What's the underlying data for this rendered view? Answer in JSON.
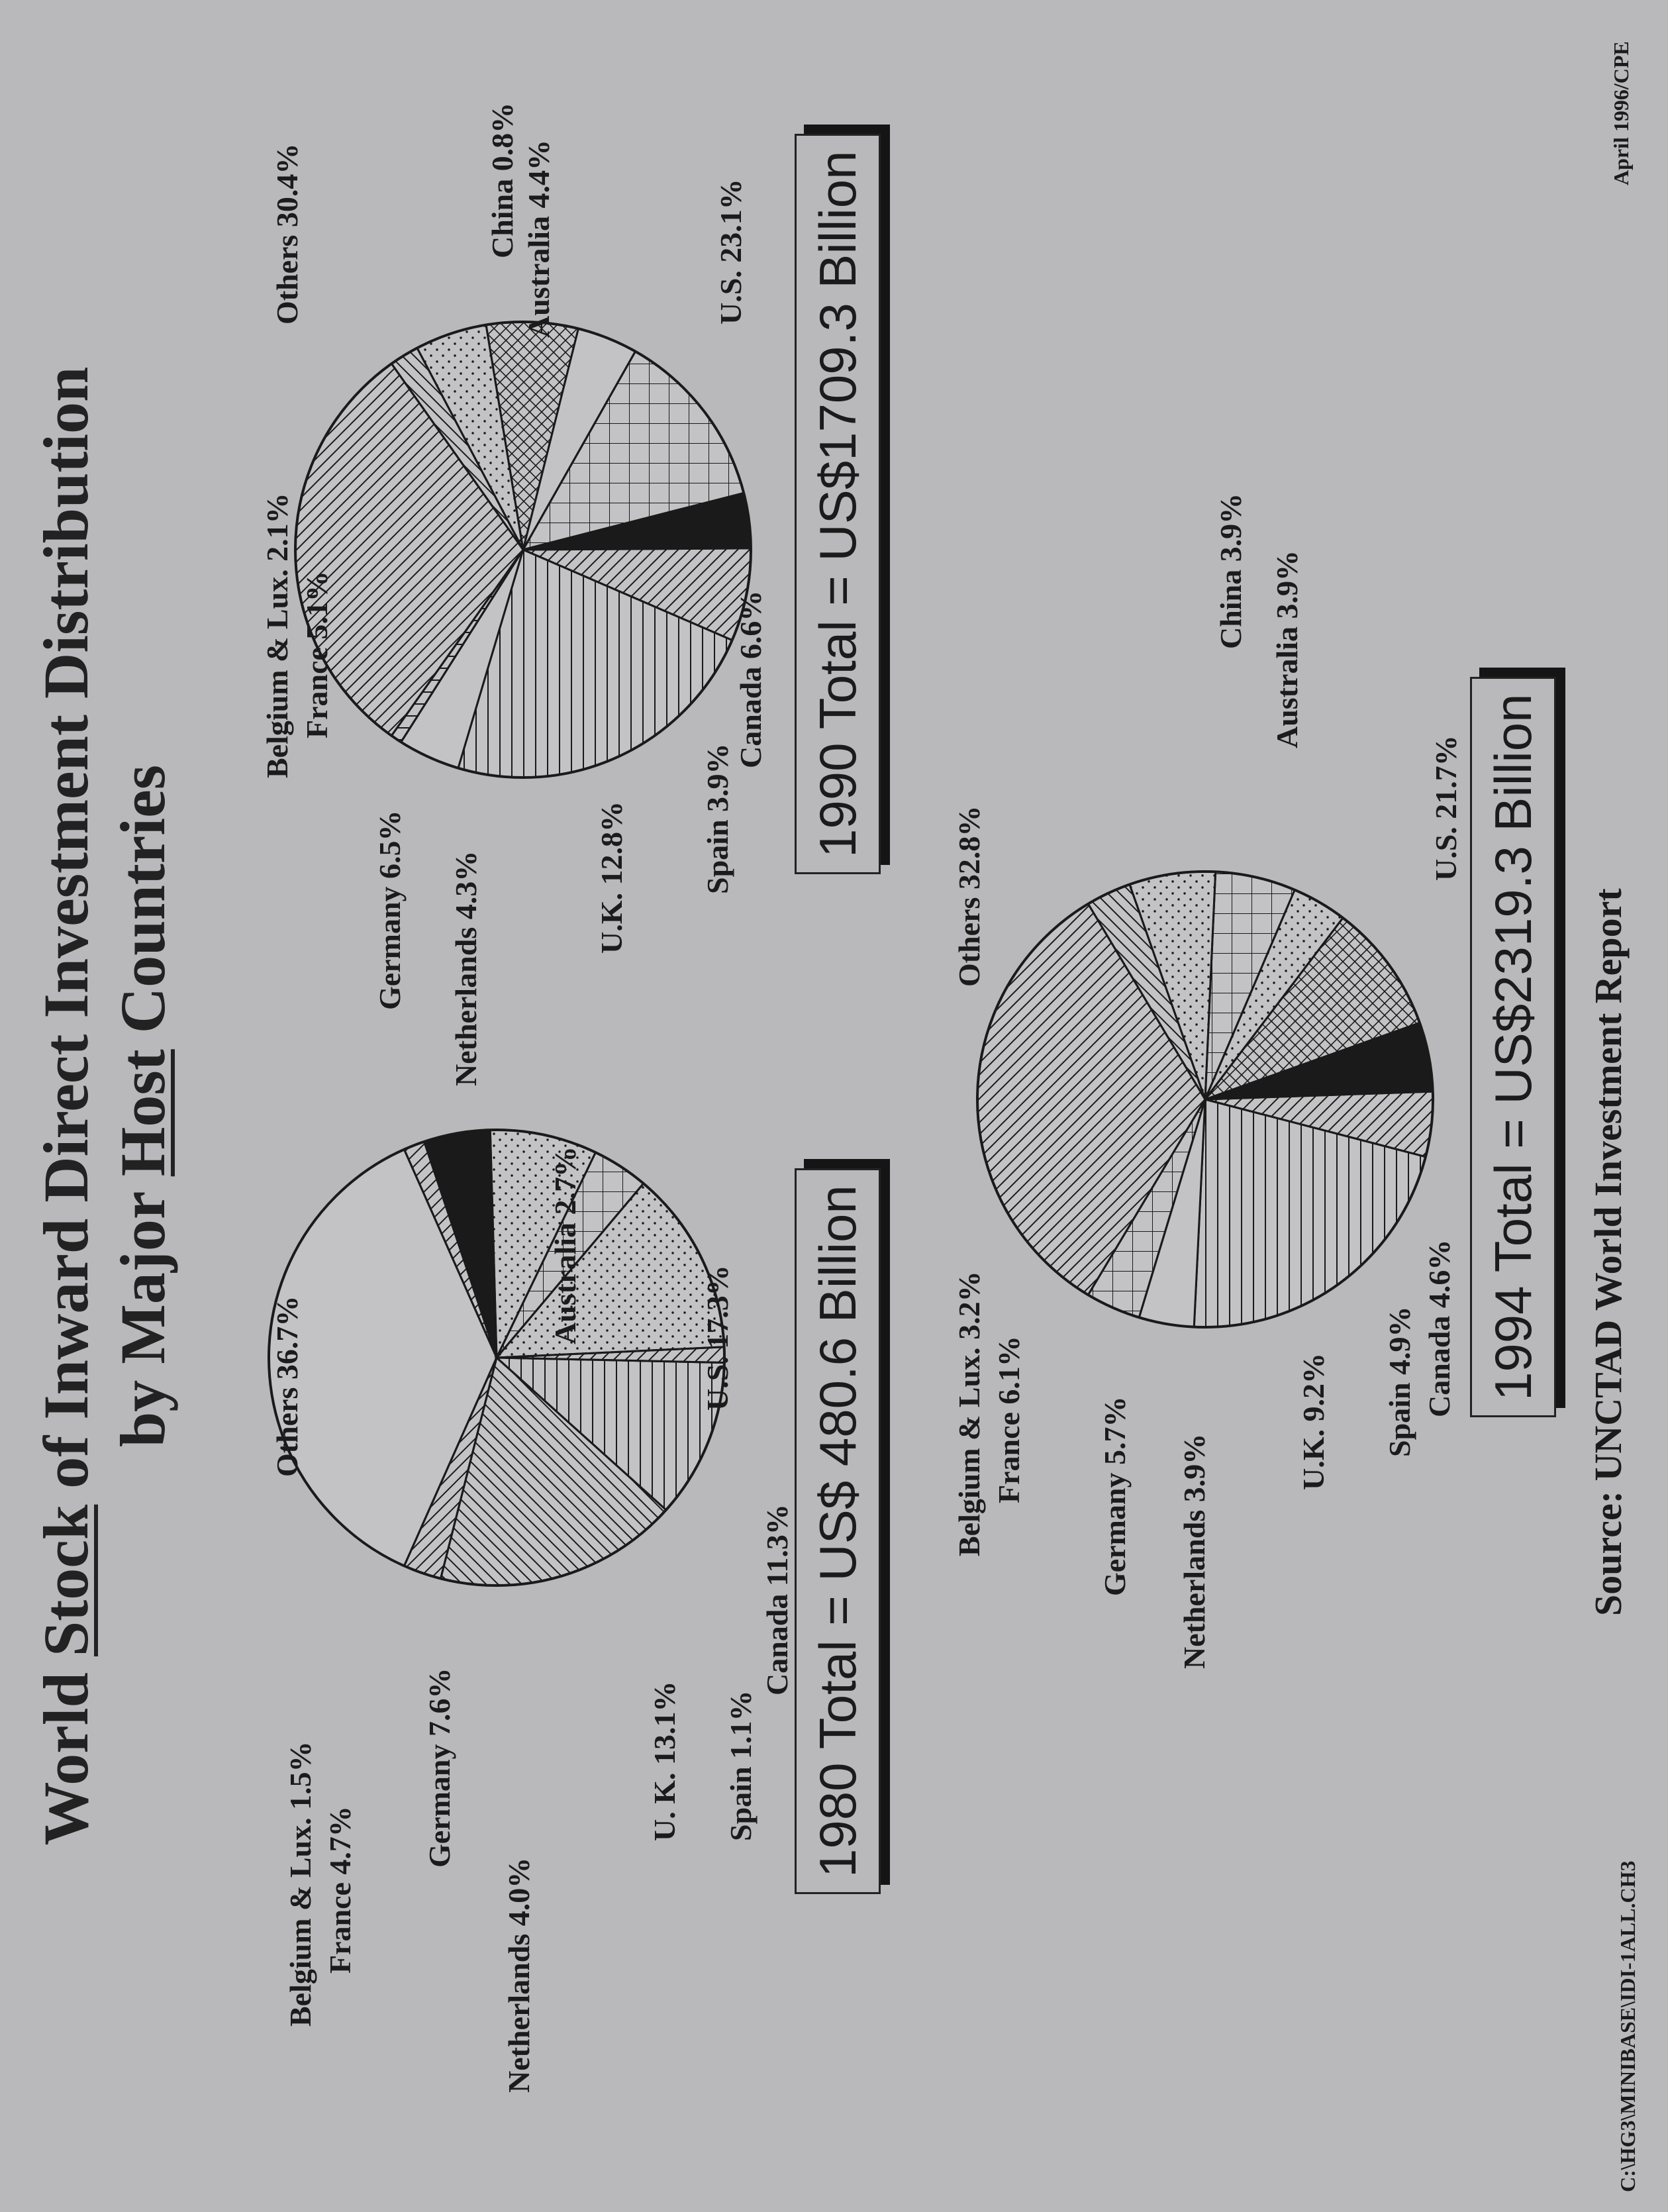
{
  "title": {
    "part1": "World ",
    "stock": "Stock",
    "part2": " of Inward Direct Investment Distribution",
    "line2_part1": "by Major ",
    "host": "Host",
    "line2_part2": " Countries"
  },
  "footer": {
    "source": "Source:  UNCTAD World Investment Report",
    "path": "C:\\HG3\\MINIBASE\\IDI-1ALL.CH3",
    "date": "April 1996/CPE"
  },
  "chart_data": [
    {
      "type": "pie",
      "title": "1980 Total = US$ 480.6 Billion",
      "slices": [
        {
          "name": "Others",
          "value": 36.7,
          "label": "Others  36.7%",
          "pattern": "blank"
        },
        {
          "name": "Belgium & Lux.",
          "value": 1.5,
          "label": "Belgium & Lux.  1.5%",
          "pattern": "diag-down"
        },
        {
          "name": "France",
          "value": 4.7,
          "label": "France  4.7%",
          "pattern": "solid"
        },
        {
          "name": "Germany",
          "value": 7.6,
          "label": "Germany  7.6%",
          "pattern": "dots"
        },
        {
          "name": "Netherlands",
          "value": 4.0,
          "label": "Netherlands  4.0%",
          "pattern": "grid"
        },
        {
          "name": "U. K.",
          "value": 13.1,
          "label": "U. K.  13.1%",
          "pattern": "dots"
        },
        {
          "name": "Spain",
          "value": 1.1,
          "label": "Spain  1.1%",
          "pattern": "diag-down"
        },
        {
          "name": "Canada",
          "value": 11.3,
          "label": "Canada  11.3%",
          "pattern": "hlines"
        },
        {
          "name": "U.S.",
          "value": 17.3,
          "label": "U.S.  17.3%",
          "pattern": "diag-up"
        },
        {
          "name": "Australia",
          "value": 2.7,
          "label": "Australia  2.7%",
          "pattern": "diag-down"
        }
      ]
    },
    {
      "type": "pie",
      "title": "1990 Total = US$1709.3 Billion",
      "slices": [
        {
          "name": "Others",
          "value": 30.4,
          "label": "Others  30.4%",
          "pattern": "diag-down"
        },
        {
          "name": "Belgium & Lux.",
          "value": 2.1,
          "label": "Belgium & Lux.  2.1%",
          "pattern": "diag-up"
        },
        {
          "name": "France",
          "value": 5.1,
          "label": "France  5.1%",
          "pattern": "dots"
        },
        {
          "name": "Germany",
          "value": 6.5,
          "label": "Germany  6.5%",
          "pattern": "crosshatch"
        },
        {
          "name": "Netherlands",
          "value": 4.3,
          "label": "Netherlands  4.3%",
          "pattern": "blank"
        },
        {
          "name": "U.K.",
          "value": 12.8,
          "label": "U.K.  12.8%",
          "pattern": "grid"
        },
        {
          "name": "Spain",
          "value": 3.9,
          "label": "Spain  3.9%",
          "pattern": "solid"
        },
        {
          "name": "Canada",
          "value": 6.6,
          "label": "Canada  6.6%",
          "pattern": "diag-down"
        },
        {
          "name": "U.S.",
          "value": 23.1,
          "label": "U.S.  23.1%",
          "pattern": "hlines"
        },
        {
          "name": "Australia",
          "value": 4.4,
          "label": "Australia  4.4%",
          "pattern": "blank"
        },
        {
          "name": "China",
          "value": 0.8,
          "label": "China  0.8%",
          "pattern": "vlines"
        }
      ]
    },
    {
      "type": "pie",
      "title": "1994 Total = US$2319.3 Billion",
      "slices": [
        {
          "name": "Others",
          "value": 32.8,
          "label": "Others  32.8%",
          "pattern": "diag-down"
        },
        {
          "name": "Belgium & Lux.",
          "value": 3.2,
          "label": "Belgium & Lux.  3.2%",
          "pattern": "diag-up"
        },
        {
          "name": "France",
          "value": 6.1,
          "label": "France  6.1%",
          "pattern": "dots"
        },
        {
          "name": "Germany",
          "value": 5.7,
          "label": "Germany  5.7%",
          "pattern": "grid"
        },
        {
          "name": "Netherlands",
          "value": 3.9,
          "label": "Netherlands  3.9%",
          "pattern": "dots"
        },
        {
          "name": "U.K.",
          "value": 9.2,
          "label": "U.K.  9.2%",
          "pattern": "crosshatch"
        },
        {
          "name": "Spain",
          "value": 4.9,
          "label": "Spain  4.9%",
          "pattern": "solid"
        },
        {
          "name": "Canada",
          "value": 4.6,
          "label": "Canada  4.6%",
          "pattern": "diag-down"
        },
        {
          "name": "U.S.",
          "value": 21.7,
          "label": "U.S.  21.7%",
          "pattern": "hlines"
        },
        {
          "name": "Australia",
          "value": 3.9,
          "label": "Australia  3.9%",
          "pattern": "blank"
        },
        {
          "name": "China",
          "value": 3.9,
          "label": "China  3.9%",
          "pattern": "grid"
        }
      ]
    }
  ]
}
